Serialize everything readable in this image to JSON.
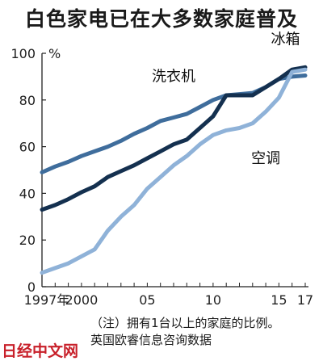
{
  "title": "白色家电已在大多数家庭普及",
  "note": "（注）拥有1台以上的家庭的比例。",
  "source": "英国欧睿信息咨询数据",
  "brand": "日经中文网",
  "chart_data": {
    "type": "line",
    "title": "白色家电已在大多数家庭普及",
    "unit_label": "%",
    "x": [
      1997,
      1998,
      1999,
      2000,
      2001,
      2002,
      2003,
      2004,
      2005,
      2006,
      2007,
      2008,
      2009,
      2010,
      2011,
      2012,
      2013,
      2014,
      2015,
      2016,
      2017
    ],
    "x_tick_values": [
      1997,
      2000,
      2005,
      2010,
      2015,
      2017
    ],
    "x_tick_labels": [
      "1997年",
      "2000",
      "05",
      "10",
      "15",
      "17"
    ],
    "ylim": [
      0,
      100
    ],
    "y_ticks": [
      0,
      20,
      40,
      60,
      80,
      100
    ],
    "series": [
      {
        "name": "洗衣机",
        "color": "#3f6d9c",
        "values": [
          49,
          51.5,
          53.5,
          56,
          58,
          60,
          62.5,
          65.5,
          68,
          71,
          72.5,
          74,
          77,
          80,
          82,
          82.5,
          83,
          85.5,
          89,
          90,
          90.5
        ]
      },
      {
        "name": "冰箱",
        "color": "#14304f",
        "values": [
          33,
          35,
          37.5,
          40.5,
          43,
          47,
          49.5,
          52,
          55,
          58,
          61,
          63,
          68,
          73,
          82,
          82,
          82,
          85.5,
          89,
          93,
          94
        ]
      },
      {
        "name": "空调",
        "color": "#8fb2d8",
        "values": [
          6,
          8,
          10,
          13,
          16,
          24,
          30,
          35,
          42,
          47,
          52,
          56,
          61,
          65,
          67,
          68,
          70,
          75,
          81,
          92,
          93
        ]
      }
    ],
    "line_labels": [
      "洗衣机",
      "冰箱",
      "空调"
    ],
    "grid": false
  }
}
